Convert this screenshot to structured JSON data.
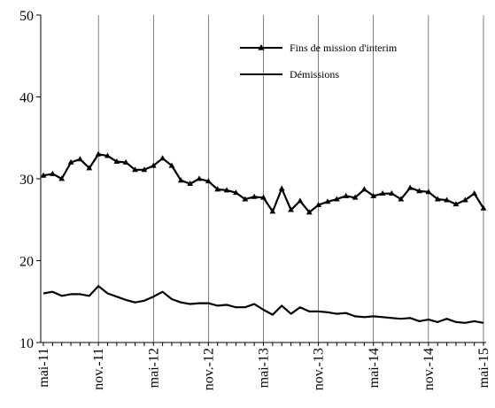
{
  "chart_data": {
    "type": "line",
    "title": "",
    "xlabel": "",
    "ylabel": "",
    "ylim": [
      10,
      50
    ],
    "yticks": [
      "10",
      "20",
      "30",
      "40",
      "50"
    ],
    "grid": "vertical gridlines at yearly x tick labels",
    "legend_placement": "top-right",
    "x_tick_labels": [
      "mai-11",
      "nov.-11",
      "mai-12",
      "nov.-12",
      "mai-13",
      "nov.-13",
      "mai-14",
      "nov.-14",
      "mai-15"
    ],
    "x": [
      "2011-05",
      "2011-06",
      "2011-07",
      "2011-08",
      "2011-09",
      "2011-10",
      "2011-11",
      "2011-12",
      "2012-01",
      "2012-02",
      "2012-03",
      "2012-04",
      "2012-05",
      "2012-06",
      "2012-07",
      "2012-08",
      "2012-09",
      "2012-10",
      "2012-11",
      "2012-12",
      "2013-01",
      "2013-02",
      "2013-03",
      "2013-04",
      "2013-05",
      "2013-06",
      "2013-07",
      "2013-08",
      "2013-09",
      "2013-10",
      "2013-11",
      "2013-12",
      "2014-01",
      "2014-02",
      "2014-03",
      "2014-04",
      "2014-05",
      "2014-06",
      "2014-07",
      "2014-08",
      "2014-09",
      "2014-10",
      "2014-11",
      "2014-12",
      "2015-01",
      "2015-02",
      "2015-03",
      "2015-04",
      "2015-05"
    ],
    "series": [
      {
        "name": "Fins de mission d'interim",
        "color": "#000000",
        "marker": "triangle",
        "values": [
          30.4,
          30.6,
          30.0,
          32.0,
          32.4,
          31.3,
          33.0,
          32.8,
          32.1,
          32.0,
          31.1,
          31.1,
          31.6,
          32.5,
          31.6,
          29.8,
          29.4,
          30.0,
          29.7,
          28.7,
          28.6,
          28.3,
          27.5,
          27.8,
          27.7,
          26.0,
          28.8,
          26.2,
          27.3,
          25.9,
          26.8,
          27.2,
          27.5,
          27.9,
          27.7,
          28.7,
          27.9,
          28.2,
          28.2,
          27.5,
          28.9,
          28.5,
          28.4,
          27.5,
          27.4,
          26.9,
          27.4,
          28.2,
          26.4
        ]
      },
      {
        "name": "Démissions",
        "color": "#000000",
        "marker": "none",
        "values": [
          16.0,
          16.2,
          15.7,
          15.9,
          15.9,
          15.7,
          16.9,
          16.0,
          15.6,
          15.2,
          14.9,
          15.1,
          15.6,
          16.2,
          15.3,
          14.9,
          14.7,
          14.8,
          14.8,
          14.5,
          14.6,
          14.3,
          14.3,
          14.7,
          14.0,
          13.4,
          14.5,
          13.5,
          14.3,
          13.8,
          13.8,
          13.7,
          13.5,
          13.6,
          13.2,
          13.1,
          13.2,
          13.1,
          13.0,
          12.9,
          13.0,
          12.6,
          12.8,
          12.5,
          12.9,
          12.5,
          12.4,
          12.6,
          12.4
        ]
      }
    ],
    "legend": [
      {
        "label": "Fins de mission d'interim",
        "marker": "triangle"
      },
      {
        "label": "Démissions",
        "marker": "none"
      }
    ]
  }
}
